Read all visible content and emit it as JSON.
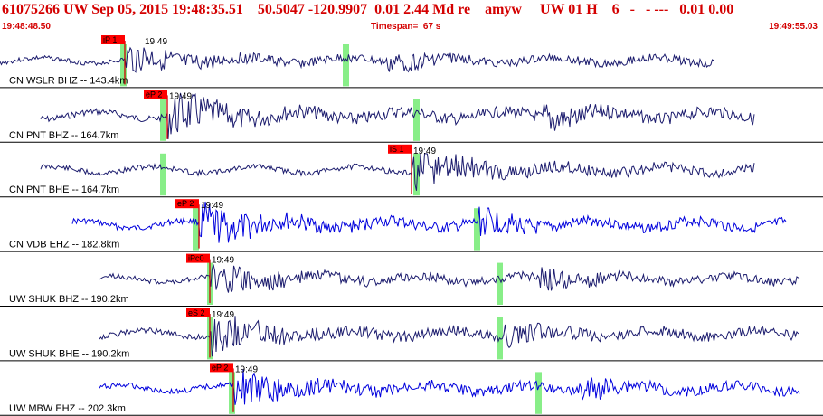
{
  "header": {
    "title": "61075266 UW Sep 05, 2015 19:48:35.51    50.5047 -120.9907  0.01 2.44 Md re    amyw     UW 01 H    6   -   - ---   0.01 0.00",
    "start_time": "19:48:48.50",
    "timespan": "Timespan=  67 s",
    "end_time": "19:49:55.03"
  },
  "colors": {
    "header_text": "#d40000",
    "pick_box": "#ff0000",
    "window_marker": "#88ee88",
    "trace_dark": "#1c1c6e",
    "trace_blue": "#0000dd"
  },
  "traces": [
    {
      "label": "CN WSLR BHZ -- 143.4km",
      "time_label": "19:49",
      "pick_label": "iP 1",
      "color": "trace_dark",
      "seed": 3
    },
    {
      "label": "CN PNT BHZ -- 164.7km",
      "time_label": "19:49",
      "pick_label": "eP 2",
      "color": "trace_dark",
      "seed": 7
    },
    {
      "label": "CN PNT BHE -- 164.7km",
      "time_label": "19:49",
      "pick_label": "iS 1",
      "color": "trace_dark",
      "seed": 11
    },
    {
      "label": "CN VDB EHZ -- 182.8km",
      "time_label": "19:49",
      "pick_label": "eP 2",
      "color": "trace_blue",
      "seed": 17
    },
    {
      "label": "UW SHUK BHZ -- 190.2km",
      "time_label": "19:49",
      "pick_label": "iPc0",
      "color": "trace_dark",
      "seed": 23
    },
    {
      "label": "UW SHUK BHE -- 190.2km",
      "time_label": "19:49",
      "pick_label": "eS 2",
      "color": "trace_dark",
      "seed": 29
    },
    {
      "label": "UW MBW EHZ -- 202.3km",
      "time_label": "19:49",
      "pick_label": "eP 2",
      "color": "trace_blue",
      "seed": 31
    }
  ]
}
